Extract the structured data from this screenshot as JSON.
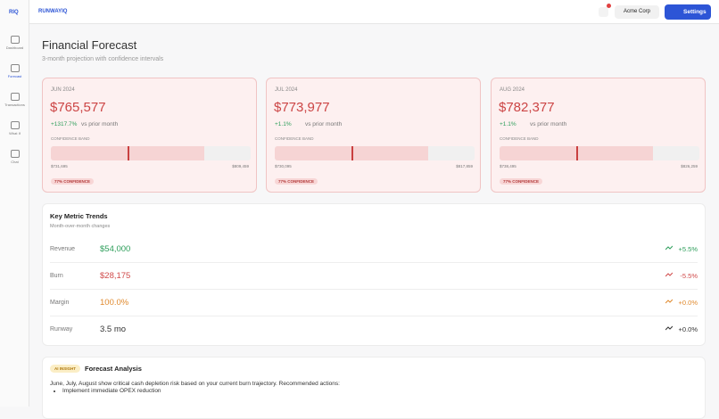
{
  "sidebar": {
    "logo": "RIQ",
    "nav": [
      "Dashboard",
      "Forecast",
      "Transactions",
      "What If",
      "Chat"
    ]
  },
  "topbar": {
    "brand": "RUNWAYIQ",
    "company": "Acme Corp",
    "button": "Settings"
  },
  "header": {
    "title": "Financial Forecast",
    "subtitle": "3-month projection with confidence intervals"
  },
  "cards": [
    {
      "month": "JUN 2024",
      "value": "$765,577",
      "change": "+1317.7%",
      "change_note": "vs prior month",
      "band_label": "CONFIDENCE BAND",
      "low": "$731,695",
      "high": "$809,459",
      "confidence": "77% CONFIDENCE"
    },
    {
      "month": "JUL 2024",
      "value": "$773,977",
      "change": "+1.1%",
      "change_note": "vs prior month",
      "band_label": "CONFIDENCE BAND",
      "low": "$730,095",
      "high": "$817,859",
      "confidence": "77% CONFIDENCE"
    },
    {
      "month": "AUG 2024",
      "value": "$782,377",
      "change": "+1.1%",
      "change_note": "vs prior month",
      "band_label": "CONFIDENCE BAND",
      "low": "$738,495",
      "high": "$826,259",
      "confidence": "77% CONFIDENCE"
    }
  ],
  "metrics": {
    "title": "Key Metric Trends",
    "subtitle": "Month-over-month changes",
    "rows": [
      {
        "name": "Revenue",
        "value": "$54,000",
        "change": "+5.5%"
      },
      {
        "name": "Burn",
        "value": "$28,175",
        "change": "-5.5%"
      },
      {
        "name": "Margin",
        "value": "100.0%",
        "change": "+0.0%"
      },
      {
        "name": "Runway",
        "value": "3.5 mo",
        "change": "+0.0%"
      }
    ]
  },
  "analysis": {
    "badge": "AI INSIGHT",
    "title": "Forecast Analysis",
    "text": "June, July, August show critical cash depletion risk based on your current burn trajectory. Recommended actions:",
    "bullets": [
      "Implement immediate OPEX reduction"
    ]
  }
}
